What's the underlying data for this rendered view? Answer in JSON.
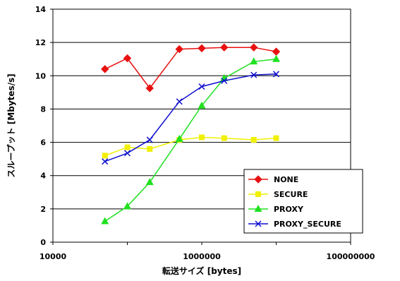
{
  "chart_data": {
    "type": "line",
    "title": "",
    "xlabel": "転送サイズ [bytes]",
    "ylabel": "スループット [Mbytes/s]",
    "xscale": "log",
    "xlim": [
      10000,
      100000000
    ],
    "ylim": [
      0,
      14
    ],
    "x_ticks": [
      10000,
      1000000,
      100000000
    ],
    "x_tick_labels": [
      "10000",
      "1000000",
      "100000000"
    ],
    "y_ticks": [
      0,
      2,
      4,
      6,
      8,
      10,
      12,
      14
    ],
    "y_tick_labels": [
      "0",
      "2",
      "4",
      "6",
      "8",
      "10",
      "12",
      "14"
    ],
    "grid": "horizontal",
    "legend_position": "bottom-right",
    "x": [
      50000,
      100000,
      200000,
      500000,
      1000000,
      2000000,
      5000000,
      10000000
    ],
    "series": [
      {
        "name": "NONE",
        "color": "#e81010",
        "marker": "diamond",
        "values": [
          10.4,
          11.05,
          9.25,
          11.6,
          11.65,
          11.7,
          11.7,
          11.45
        ]
      },
      {
        "name": "SECURE",
        "color": "#f0f000",
        "marker": "square",
        "values": [
          5.2,
          5.7,
          5.6,
          6.15,
          6.3,
          6.25,
          6.15,
          6.25
        ]
      },
      {
        "name": "PROXY",
        "color": "#20e020",
        "marker": "triangle",
        "values": [
          1.25,
          2.15,
          3.6,
          6.2,
          8.2,
          9.85,
          10.85,
          11.0
        ]
      },
      {
        "name": "PROXY_SECURE",
        "color": "#1010d0",
        "marker": "x",
        "values": [
          4.85,
          5.35,
          6.15,
          8.45,
          9.35,
          9.7,
          10.05,
          10.1
        ]
      }
    ]
  }
}
